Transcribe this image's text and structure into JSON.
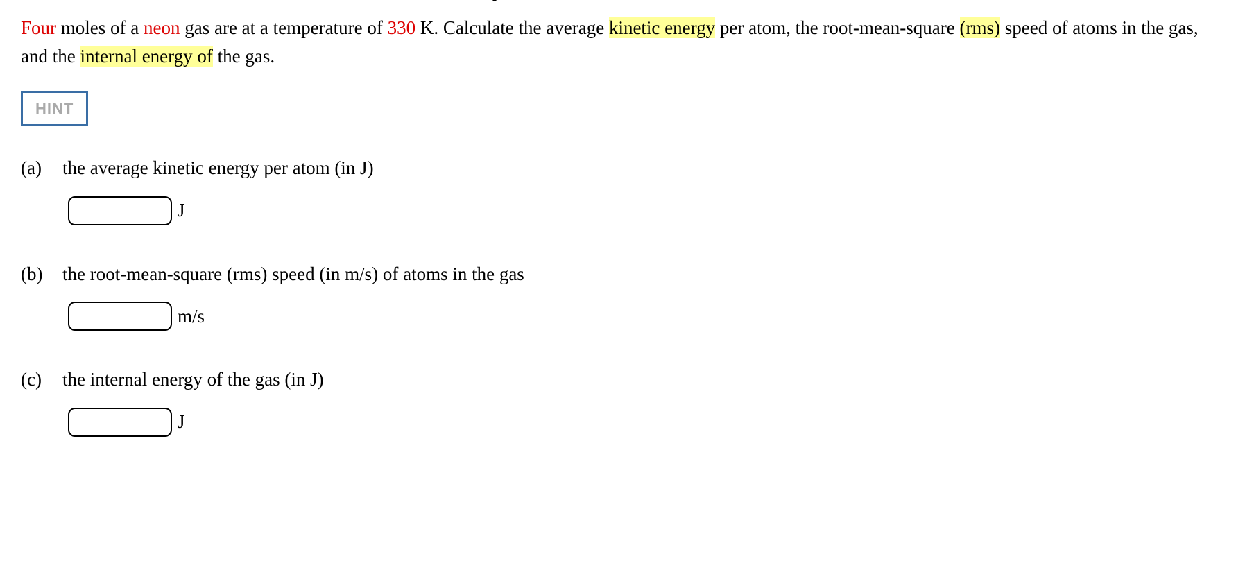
{
  "annotation": {
    "t_label": "T"
  },
  "problem": {
    "word_four": "Four",
    "text_1": " moles of a ",
    "word_neon": "neon",
    "text_2": " gas are at a temperature of ",
    "word_330": "330",
    "text_3": " K. Calculate the average ",
    "highlight_kinetic": "kinetic energy",
    "text_4": " per atom, the root-mean-square ",
    "highlight_rms": "(rms)",
    "text_5": " speed of atoms in the gas, and the ",
    "highlight_internal": "internal energy of",
    "text_6": " the gas."
  },
  "hint": {
    "label": "HINT"
  },
  "parts": {
    "a": {
      "label": "(a)",
      "prompt": "the average kinetic energy per atom (in J)",
      "unit": "J"
    },
    "b": {
      "label": "(b)",
      "prompt": "the root-mean-square (rms) speed (in m/s) of atoms in the gas",
      "unit": "m/s"
    },
    "c": {
      "label": "(c)",
      "prompt": "the internal energy of the gas (in J)",
      "unit": "J"
    }
  },
  "colors": {
    "red": "#dd0000",
    "highlight_bg": "#ffff99",
    "hint_border": "#3a6ea5",
    "hint_text": "#aaaaaa",
    "border_gray": "#e5e5e5"
  }
}
